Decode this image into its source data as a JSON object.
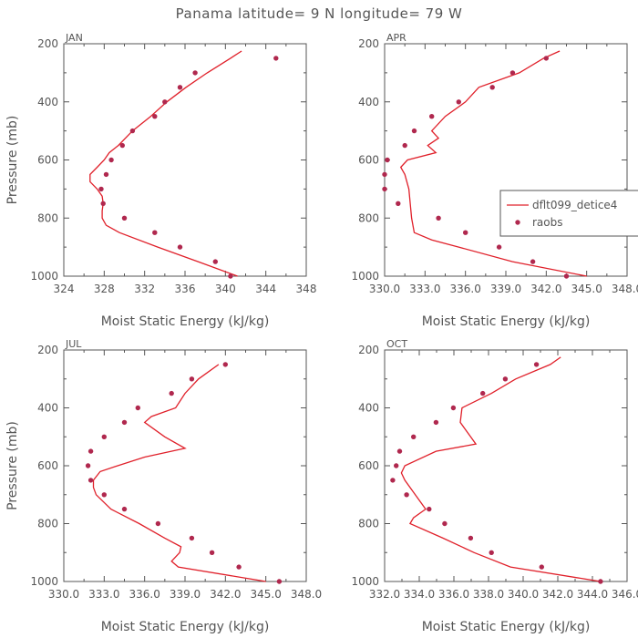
{
  "figure": {
    "title": "Panama  latitude= 9 N longitude= 79 W"
  },
  "colors": {
    "model": "#e0202a",
    "raobs": "#b0284e",
    "axis": "#555555"
  },
  "legend": {
    "model": "dflt099_detice4",
    "raobs": "raobs"
  },
  "chart_data": [
    {
      "type": "line",
      "month": "JAN",
      "xlabel": "Moist Static Energy (kJ/kg)",
      "ylabel": "Pressure (mb)",
      "xlim": [
        324,
        348
      ],
      "ylim": [
        1000,
        200
      ],
      "xticks": [
        "324",
        "328",
        "332",
        "336",
        "340",
        "344",
        "348"
      ],
      "yticks": [
        "200",
        "400",
        "600",
        "800",
        "1000"
      ],
      "model": {
        "name": "dflt099_detice4",
        "pressure": [
          225,
          250,
          300,
          350,
          400,
          450,
          500,
          550,
          575,
          600,
          625,
          650,
          675,
          700,
          725,
          750,
          775,
          800,
          825,
          850,
          900,
          950,
          1000
        ],
        "mse": [
          341.6,
          340.5,
          338.2,
          336.1,
          334.2,
          332.6,
          330.8,
          329.4,
          328.5,
          328.0,
          327.3,
          326.6,
          326.6,
          327.3,
          327.8,
          327.9,
          327.8,
          327.8,
          328.2,
          329.5,
          333.3,
          337.3,
          341.2
        ]
      },
      "raobs": {
        "name": "raobs",
        "pressure": [
          250,
          300,
          350,
          400,
          450,
          500,
          550,
          600,
          650,
          700,
          750,
          800,
          850,
          900,
          950,
          1000
        ],
        "mse": [
          345.0,
          337.0,
          335.5,
          334.0,
          333.0,
          330.8,
          329.8,
          328.7,
          328.2,
          327.7,
          327.9,
          330.0,
          333.0,
          335.5,
          339.0,
          340.5
        ]
      }
    },
    {
      "type": "line",
      "month": "APR",
      "xlabel": "Moist Static Energy (kJ/kg)",
      "ylabel": "",
      "xlim": [
        330,
        348
      ],
      "ylim": [
        1000,
        200
      ],
      "xticks": [
        "330.0",
        "333.0",
        "336.0",
        "339.0",
        "342.0",
        "345.0",
        "348.0"
      ],
      "yticks": [
        "200",
        "400",
        "600",
        "800",
        "1000"
      ],
      "model": {
        "name": "dflt099_detice4",
        "pressure": [
          225,
          250,
          300,
          350,
          400,
          450,
          500,
          525,
          550,
          575,
          600,
          625,
          650,
          700,
          750,
          800,
          850,
          875,
          900,
          950,
          1000
        ],
        "mse": [
          343.0,
          341.8,
          340.0,
          337.0,
          336.0,
          334.5,
          333.5,
          334.0,
          333.2,
          333.8,
          331.7,
          331.2,
          331.5,
          331.8,
          331.9,
          332.0,
          332.2,
          333.5,
          335.5,
          339.5,
          345.0
        ]
      },
      "raobs": {
        "name": "raobs",
        "pressure": [
          250,
          300,
          350,
          400,
          450,
          500,
          550,
          600,
          650,
          700,
          750,
          800,
          850,
          900,
          950,
          1000
        ],
        "mse": [
          342.0,
          339.5,
          338.0,
          335.5,
          333.5,
          332.2,
          331.5,
          330.2,
          330.0,
          330.0,
          331.0,
          334.0,
          336.0,
          338.5,
          341.0,
          343.5
        ]
      }
    },
    {
      "type": "line",
      "month": "JUL",
      "xlabel": "Moist Static Energy (kJ/kg)",
      "ylabel": "Pressure (mb)",
      "xlim": [
        330,
        348
      ],
      "ylim": [
        1000,
        200
      ],
      "xticks": [
        "330.0",
        "333.0",
        "336.0",
        "339.0",
        "342.0",
        "345.0",
        "348.0"
      ],
      "yticks": [
        "200",
        "400",
        "600",
        "800",
        "1000"
      ],
      "model": {
        "name": "dflt099_detice4",
        "pressure": [
          250,
          300,
          350,
          400,
          430,
          450,
          500,
          540,
          570,
          600,
          620,
          650,
          675,
          700,
          750,
          800,
          850,
          880,
          900,
          930,
          950,
          1000
        ],
        "mse": [
          341.5,
          340.0,
          339.0,
          338.3,
          336.5,
          336.0,
          337.5,
          339.0,
          336.0,
          334.0,
          332.7,
          332.2,
          332.2,
          332.4,
          333.5,
          335.6,
          337.5,
          338.7,
          338.6,
          338.0,
          338.5,
          345.0
        ]
      },
      "raobs": {
        "name": "raobs",
        "pressure": [
          250,
          300,
          350,
          400,
          450,
          500,
          550,
          600,
          650,
          700,
          750,
          800,
          850,
          900,
          950,
          1000
        ],
        "mse": [
          342.0,
          339.5,
          338.0,
          335.5,
          334.5,
          333.0,
          332.0,
          331.8,
          332.0,
          333.0,
          334.5,
          337.0,
          339.5,
          341.0,
          343.0,
          346.0
        ]
      }
    },
    {
      "type": "line",
      "month": "OCT",
      "xlabel": "Moist Static Energy (kJ/kg)",
      "ylabel": "",
      "xlim": [
        332.03,
        346.03
      ],
      "ylim": [
        1000,
        200
      ],
      "xticks": [
        "332.0",
        "334.0",
        "336.0",
        "338.0",
        "340.0",
        "342.0",
        "344.0",
        "346.0"
      ],
      "model": {
        "name": "dflt099_detice4",
        "pressure": [
          225,
          250,
          300,
          350,
          400,
          450,
          500,
          525,
          550,
          600,
          625,
          650,
          700,
          750,
          780,
          800,
          850,
          900,
          950,
          1000
        ],
        "mse": [
          342.2,
          341.6,
          339.6,
          338.2,
          336.5,
          336.4,
          337.0,
          337.3,
          335.0,
          333.2,
          333.0,
          333.2,
          333.8,
          334.4,
          333.7,
          333.5,
          335.4,
          337.2,
          339.3,
          344.5
        ]
      },
      "raobs": {
        "name": "raobs",
        "pressure": [
          250,
          300,
          350,
          400,
          450,
          500,
          550,
          600,
          650,
          700,
          750,
          800,
          850,
          900,
          950,
          1000
        ],
        "mse": [
          340.8,
          339.0,
          337.7,
          336.0,
          335.0,
          333.7,
          332.9,
          332.7,
          332.5,
          333.3,
          334.6,
          335.5,
          337.0,
          338.2,
          341.1,
          344.5
        ]
      },
      "yticks": [
        "200",
        "400",
        "600",
        "800",
        "1000"
      ]
    }
  ]
}
